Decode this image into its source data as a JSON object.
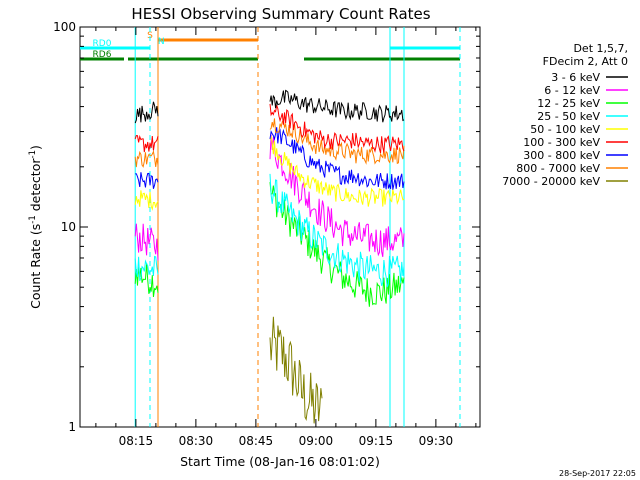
{
  "chart_data": {
    "type": "line",
    "title": "HESSI Observing Summary Count Rates",
    "xlabel": "Start Time (08-Jan-16 08:01:02)",
    "ylabel_main": "Count Rate (s",
    "ylabel_sup1": "-1",
    "ylabel_mid": " detector",
    "ylabel_sup2": "-1",
    "ylabel_end": ")",
    "yscale": "log",
    "ylim": [
      1,
      100
    ],
    "xlim_minutes": [
      0,
      100
    ],
    "x_ticks": [
      {
        "minute": 13.97,
        "label": "08:15"
      },
      {
        "minute": 28.97,
        "label": "08:30"
      },
      {
        "minute": 43.97,
        "label": "08:45"
      },
      {
        "minute": 58.97,
        "label": "09:00"
      },
      {
        "minute": 73.97,
        "label": "09:15"
      },
      {
        "minute": 88.97,
        "label": "09:30"
      }
    ],
    "y_ticks": [
      {
        "value": 1,
        "label": "1"
      },
      {
        "value": 10,
        "label": "10"
      },
      {
        "value": 100,
        "label": "100"
      }
    ],
    "legend": {
      "header1": "Det 1,5,7,",
      "header2": "FDecim 2, Att 0",
      "position": "right"
    },
    "series": [
      {
        "name": "3 - 6 keV",
        "color": "#000000",
        "first": [
          36,
          39
        ],
        "second": [
          42,
          44,
          43,
          41,
          40,
          39,
          38,
          38,
          38,
          37,
          37,
          37
        ]
      },
      {
        "name": "6 - 12 keV",
        "color": "#ff00ff",
        "first": [
          9,
          8
        ],
        "second": [
          26,
          21,
          17,
          14,
          12,
          10.5,
          9.5,
          9,
          8.7,
          8.5,
          8.5,
          8.5
        ]
      },
      {
        "name": "12 - 25 keV",
        "color": "#00ff00",
        "first": [
          6,
          5.2
        ],
        "second": [
          15,
          12,
          10,
          8.5,
          7.2,
          6.3,
          5.6,
          5.1,
          4.8,
          4.7,
          4.9,
          5.2
        ]
      },
      {
        "name": "25 - 50 keV",
        "color": "#00ffff",
        "first": [
          6.5,
          6
        ],
        "second": [
          16,
          13,
          11,
          9.5,
          8.3,
          7.5,
          6.9,
          6.4,
          6.1,
          6,
          6,
          6
        ]
      },
      {
        "name": "50 - 100 keV",
        "color": "#ffff00",
        "first": [
          14,
          13.5
        ],
        "second": [
          27,
          22,
          19,
          17,
          16,
          15,
          14.5,
          14,
          14,
          14,
          14,
          14
        ]
      },
      {
        "name": "100 - 300 keV",
        "color": "#ff0000",
        "first": [
          26,
          26
        ],
        "second": [
          38,
          36,
          33,
          30,
          28,
          27,
          27,
          27,
          26,
          26,
          26,
          26
        ]
      },
      {
        "name": "300 - 800 keV",
        "color": "#0000ff",
        "first": [
          17,
          17
        ],
        "second": [
          30,
          28,
          25,
          22,
          20,
          19,
          18,
          18,
          17,
          17,
          17,
          17
        ]
      },
      {
        "name": "800 - 7000 keV",
        "color": "#ff8000",
        "first": [
          22,
          22
        ],
        "second": [
          34,
          32,
          30,
          27,
          25,
          24,
          24,
          23,
          23,
          23,
          23,
          23
        ]
      },
      {
        "name": "7000 - 20000 keV",
        "color": "#808000",
        "first": [],
        "second": [
          2.5,
          2.4,
          2.0,
          1.5,
          1.3,
          1.2
        ]
      }
    ],
    "bars": [
      {
        "label": "RD0",
        "color": "#00ffff",
        "segments": [
          [
            0,
            17.5
          ],
          [
            77.5,
            95
          ]
        ]
      },
      {
        "label": "RD6",
        "color": "#008000",
        "segments": [
          [
            0,
            11
          ],
          [
            12,
            44.5
          ],
          [
            56,
            88.5
          ],
          [
            88.5,
            95
          ]
        ]
      },
      {
        "label": "S",
        "color": "#ff8000",
        "segments": [
          [
            19.5,
            44.5
          ]
        ]
      },
      {
        "label": "N",
        "color": "#00ffff",
        "segments": []
      }
    ],
    "vlines": [
      {
        "minute": 13.8,
        "color": "#00ffff",
        "style": "solid"
      },
      {
        "minute": 17.5,
        "color": "#00ffff",
        "style": "dashed"
      },
      {
        "minute": 19.5,
        "color": "#ff8000",
        "style": "solid"
      },
      {
        "minute": 44.5,
        "color": "#ff8000",
        "style": "dashed"
      },
      {
        "minute": 77.5,
        "color": "#00ffff",
        "style": "solid"
      },
      {
        "minute": 81.0,
        "color": "#00ffff",
        "style": "solid"
      },
      {
        "minute": 95.0,
        "color": "#00ffff",
        "style": "dashed"
      }
    ]
  },
  "footer": {
    "timestamp": "28-Sep-2017 22:05"
  }
}
